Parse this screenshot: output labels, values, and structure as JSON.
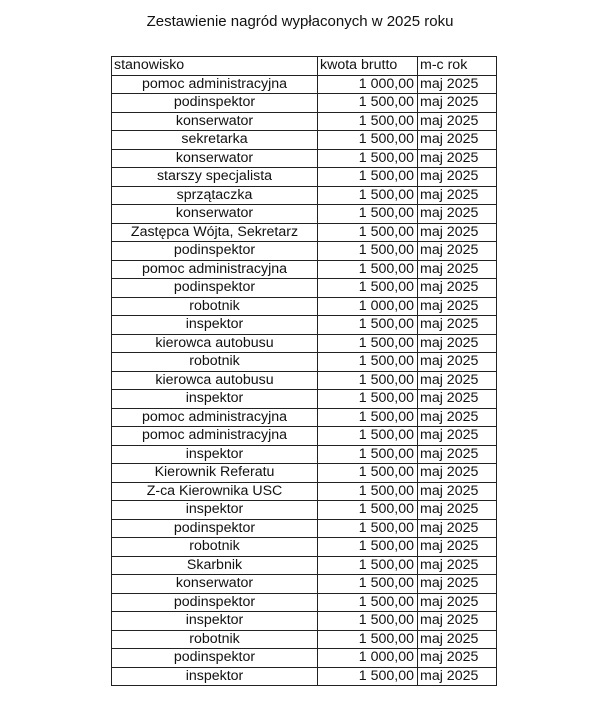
{
  "title": "Zestawienie nagród wypłaconych w 2025 roku",
  "table": {
    "headers": [
      "stanowisko",
      "kwota brutto",
      "m-c rok"
    ],
    "rows": [
      [
        "pomoc administracyjna",
        "1 000,00",
        "maj 2025"
      ],
      [
        "podinspektor",
        "1 500,00",
        "maj 2025"
      ],
      [
        "konserwator",
        "1 500,00",
        "maj 2025"
      ],
      [
        "sekretarka",
        "1 500,00",
        "maj 2025"
      ],
      [
        "konserwator",
        "1 500,00",
        "maj 2025"
      ],
      [
        "starszy specjalista",
        "1 500,00",
        "maj 2025"
      ],
      [
        "sprzątaczka",
        "1 500,00",
        "maj 2025"
      ],
      [
        "konserwator",
        "1 500,00",
        "maj 2025"
      ],
      [
        "Zastępca Wójta, Sekretarz",
        "1 500,00",
        "maj 2025"
      ],
      [
        "podinspektor",
        "1 500,00",
        "maj 2025"
      ],
      [
        "pomoc administracyjna",
        "1 500,00",
        "maj 2025"
      ],
      [
        "podinspektor",
        "1 500,00",
        "maj 2025"
      ],
      [
        "robotnik",
        "1 000,00",
        "maj 2025"
      ],
      [
        "inspektor",
        "1 500,00",
        "maj 2025"
      ],
      [
        "kierowca autobusu",
        "1 500,00",
        "maj 2025"
      ],
      [
        "robotnik",
        "1 500,00",
        "maj 2025"
      ],
      [
        "kierowca autobusu",
        "1 500,00",
        "maj 2025"
      ],
      [
        "inspektor",
        "1 500,00",
        "maj 2025"
      ],
      [
        "pomoc administracyjna",
        "1 500,00",
        "maj 2025"
      ],
      [
        "pomoc administracyjna",
        "1 500,00",
        "maj 2025"
      ],
      [
        "inspektor",
        "1 500,00",
        "maj 2025"
      ],
      [
        "Kierownik Referatu",
        "1 500,00",
        "maj 2025"
      ],
      [
        "Z-ca Kierownika USC",
        "1 500,00",
        "maj 2025"
      ],
      [
        "inspektor",
        "1 500,00",
        "maj 2025"
      ],
      [
        "podinspektor",
        "1 500,00",
        "maj 2025"
      ],
      [
        "robotnik",
        "1 500,00",
        "maj 2025"
      ],
      [
        "Skarbnik",
        "1 500,00",
        "maj 2025"
      ],
      [
        "konserwator",
        "1 500,00",
        "maj 2025"
      ],
      [
        "podinspektor",
        "1 500,00",
        "maj 2025"
      ],
      [
        "inspektor",
        "1 500,00",
        "maj 2025"
      ],
      [
        "robotnik",
        "1 500,00",
        "maj 2025"
      ],
      [
        "podinspektor",
        "1 000,00",
        "maj 2025"
      ],
      [
        "inspektor",
        "1 500,00",
        "maj 2025"
      ]
    ]
  }
}
